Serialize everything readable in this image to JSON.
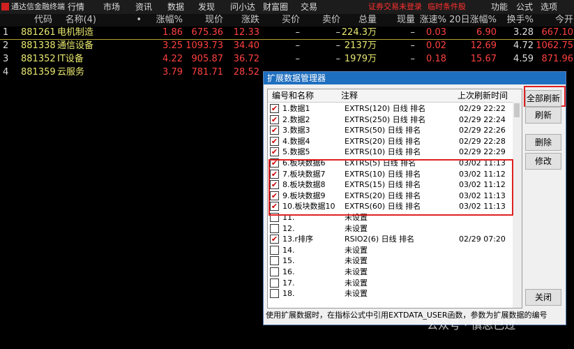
{
  "menubar": {
    "app": "通达信金融终端",
    "menus": [
      "行情",
      "市场",
      "资讯",
      "数据",
      "发现",
      "问小达",
      "财富圈",
      "交易"
    ],
    "alerts": [
      "证券交易未登录",
      "临时条件股"
    ],
    "right_menus": [
      "功能",
      "公式",
      "选项"
    ]
  },
  "table": {
    "columns": [
      "代码",
      "名称(4)",
      "•",
      "涨幅%",
      "现价",
      "涨跌",
      "买价",
      "卖价",
      "总量",
      "现量",
      "涨速%",
      "20日涨幅%",
      "换手%",
      "今开"
    ],
    "rows": [
      [
        "1",
        "881261",
        "电机制造",
        "1.86",
        "675.36",
        "12.33",
        "–",
        "–",
        "224.3万",
        "–",
        "0.03",
        "6.90",
        "3.28",
        "667.10"
      ],
      [
        "2",
        "881338",
        "通信设备",
        "3.25",
        "1093.73",
        "34.40",
        "–",
        "–",
        "2137万",
        "–",
        "0.02",
        "12.69",
        "4.72",
        "1062.75"
      ],
      [
        "3",
        "881352",
        "IT设备",
        "4.22",
        "905.87",
        "36.72",
        "–",
        "–",
        "1979万",
        "–",
        "0.18",
        "15.67",
        "4.59",
        "871.96"
      ],
      [
        "4",
        "881359",
        "云服务",
        "3.79",
        "781.71",
        "28.52"
      ]
    ]
  },
  "dialog": {
    "title": "扩展数据管理器",
    "columns": [
      "编号和名称",
      "注释",
      "上次刷新时间"
    ],
    "rows": [
      {
        "name": "1.数据1",
        "note": "EXTRS(120) 日线 排名",
        "time": "02/29 22:22",
        "checked": true
      },
      {
        "name": "2.数据2",
        "note": "EXTRS(250) 日线 排名",
        "time": "02/29 22:24",
        "checked": true
      },
      {
        "name": "3.数据3",
        "note": "EXTRS(50) 日线 排名",
        "time": "02/29 22:26",
        "checked": true
      },
      {
        "name": "4.数据4",
        "note": "EXTRS(20) 日线 排名",
        "time": "02/29 22:28",
        "checked": true
      },
      {
        "name": "5.数据5",
        "note": "EXTRS(10) 日线 排名",
        "time": "02/29 22:29",
        "checked": true
      },
      {
        "name": "6.板块数据6",
        "note": "EXTRS(5) 日线 排名",
        "time": "03/02 11:13",
        "checked": true
      },
      {
        "name": "7.板块数据7",
        "note": "EXTRS(10) 日线 排名",
        "time": "03/02 11:12",
        "checked": true
      },
      {
        "name": "8.板块数据8",
        "note": "EXTRS(15) 日线 排名",
        "time": "03/02 11:12",
        "checked": true
      },
      {
        "name": "9.板块数据9",
        "note": "EXTRS(20) 日线 排名",
        "time": "03/02 11:13",
        "checked": true
      },
      {
        "name": "10.板块数据10",
        "note": "EXTRS(60) 日线 排名",
        "time": "03/02 11:13",
        "checked": true
      },
      {
        "name": "11.",
        "note": "未设置",
        "time": "",
        "checked": false
      },
      {
        "name": "12.",
        "note": "未设置",
        "time": "",
        "checked": false
      },
      {
        "name": "13.r排序",
        "note": "RSIO2(6) 日线 排名",
        "time": "02/29 07:20",
        "checked": true
      },
      {
        "name": "14.",
        "note": "未设置",
        "time": "",
        "checked": false
      },
      {
        "name": "15.",
        "note": "未设置",
        "time": "",
        "checked": false
      },
      {
        "name": "16.",
        "note": "未设置",
        "time": "",
        "checked": false
      },
      {
        "name": "17.",
        "note": "未设置",
        "time": "",
        "checked": false
      },
      {
        "name": "18.",
        "note": "未设置",
        "time": "",
        "checked": false
      }
    ],
    "buttons": [
      "全部刷新",
      "刷新",
      "删除",
      "修改",
      "关闭"
    ],
    "footer": "使用扩展数据时，在指标公式中引用EXTDATA_USER函数，参数为扩展数据的编号"
  },
  "watermark": "公众号 · 慎思已过"
}
